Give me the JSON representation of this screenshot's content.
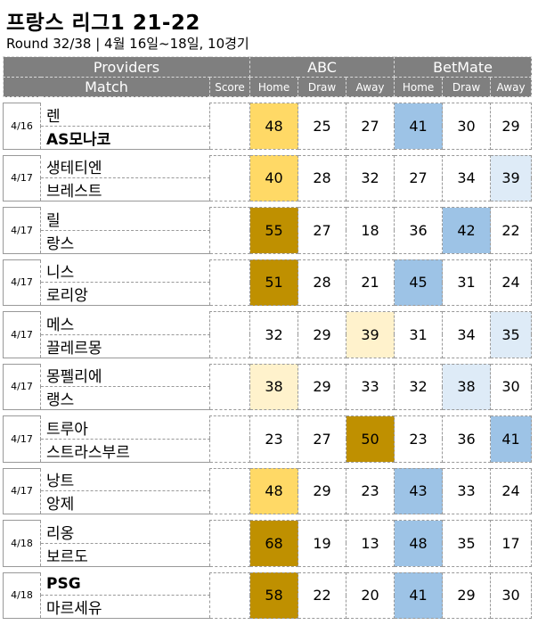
{
  "title": "프랑스 리그1 21-22",
  "subtitle": "Round 32/38  | 4월 16일~18일, 10경기",
  "header": {
    "providers": "Providers",
    "match": "Match",
    "score": "Score",
    "provider1": "ABC",
    "provider2": "BetMate",
    "home": "Home",
    "draw": "Draw",
    "away": "Away"
  },
  "colors": {
    "header_bg": "#7f7f7f",
    "abc_fav_light": "#ffd966",
    "abc_fav_strong": "#bf9000",
    "abc_fav_pale": "#fff2cc",
    "betmate_fav": "#9dc3e6",
    "betmate_fav_pale": "#deebf7"
  },
  "matches": [
    {
      "date": "4/16",
      "home": "렌",
      "away": "AS모나코",
      "home_bold": false,
      "away_bold": true,
      "abc": {
        "home": "48",
        "draw": "25",
        "away": "27"
      },
      "betmate": {
        "home": "41",
        "draw": "30",
        "away": "29"
      },
      "hl": {
        "abc_home": "c-h1",
        "bm_home": "c-b1"
      }
    },
    {
      "date": "4/17",
      "home": "생테티엔",
      "away": "브레스트",
      "home_bold": false,
      "away_bold": false,
      "abc": {
        "home": "40",
        "draw": "28",
        "away": "32"
      },
      "betmate": {
        "home": "27",
        "draw": "34",
        "away": "39"
      },
      "hl": {
        "abc_home": "c-h1",
        "bm_away": "c-b2"
      }
    },
    {
      "date": "4/17",
      "home": "릴",
      "away": "랑스",
      "home_bold": false,
      "away_bold": false,
      "abc": {
        "home": "55",
        "draw": "27",
        "away": "18"
      },
      "betmate": {
        "home": "36",
        "draw": "42",
        "away": "22"
      },
      "hl": {
        "abc_home": "c-h2",
        "bm_draw": "c-b1"
      }
    },
    {
      "date": "4/17",
      "home": "니스",
      "away": "로리앙",
      "home_bold": false,
      "away_bold": false,
      "abc": {
        "home": "51",
        "draw": "28",
        "away": "21"
      },
      "betmate": {
        "home": "45",
        "draw": "31",
        "away": "24"
      },
      "hl": {
        "abc_home": "c-h2",
        "bm_home": "c-b1"
      }
    },
    {
      "date": "4/17",
      "home": "메스",
      "away": "끌레르몽",
      "home_bold": false,
      "away_bold": false,
      "abc": {
        "home": "32",
        "draw": "29",
        "away": "39"
      },
      "betmate": {
        "home": "31",
        "draw": "34",
        "away": "35"
      },
      "hl": {
        "abc_away": "c-h3",
        "bm_away": "c-b2"
      }
    },
    {
      "date": "4/17",
      "home": "몽펠리에",
      "away": "랭스",
      "home_bold": false,
      "away_bold": false,
      "abc": {
        "home": "38",
        "draw": "29",
        "away": "33"
      },
      "betmate": {
        "home": "32",
        "draw": "38",
        "away": "30"
      },
      "hl": {
        "abc_home": "c-h3",
        "bm_draw": "c-b2"
      }
    },
    {
      "date": "4/17",
      "home": "트루아",
      "away": "스트라스부르",
      "home_bold": false,
      "away_bold": false,
      "abc": {
        "home": "23",
        "draw": "27",
        "away": "50"
      },
      "betmate": {
        "home": "23",
        "draw": "36",
        "away": "41"
      },
      "hl": {
        "abc_away": "c-h2",
        "bm_away": "c-b1"
      }
    },
    {
      "date": "4/17",
      "home": "낭트",
      "away": "앙제",
      "home_bold": false,
      "away_bold": false,
      "abc": {
        "home": "48",
        "draw": "29",
        "away": "23"
      },
      "betmate": {
        "home": "43",
        "draw": "33",
        "away": "24"
      },
      "hl": {
        "abc_home": "c-h1",
        "bm_home": "c-b1"
      }
    },
    {
      "date": "4/18",
      "home": "리옹",
      "away": "보르도",
      "home_bold": false,
      "away_bold": false,
      "abc": {
        "home": "68",
        "draw": "19",
        "away": "13"
      },
      "betmate": {
        "home": "48",
        "draw": "35",
        "away": "17"
      },
      "hl": {
        "abc_home": "c-h2",
        "bm_home": "c-b1"
      }
    },
    {
      "date": "4/18",
      "home": "PSG",
      "away": "마르세유",
      "home_bold": true,
      "away_bold": false,
      "abc": {
        "home": "58",
        "draw": "22",
        "away": "20"
      },
      "betmate": {
        "home": "41",
        "draw": "29",
        "away": "30"
      },
      "hl": {
        "abc_home": "c-h2",
        "bm_home": "c-b1"
      }
    }
  ]
}
